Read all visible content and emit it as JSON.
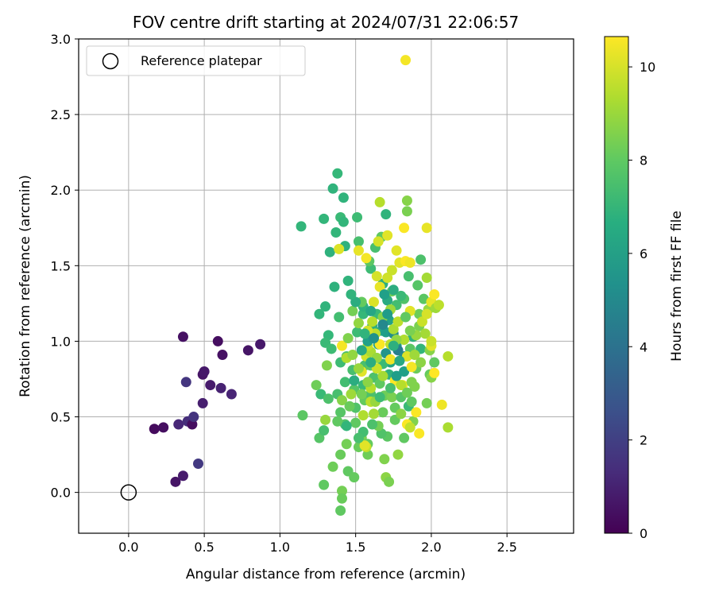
{
  "chart_data": {
    "type": "scatter",
    "title": "FOV centre drift starting at 2024/07/31 22:06:57",
    "xlabel": "Angular distance from reference (arcmin)",
    "ylabel": "Rotation from reference (arcmin)",
    "xlim": [
      -0.33,
      2.94
    ],
    "ylim": [
      -0.27,
      3.0
    ],
    "xticks": [
      0.0,
      0.5,
      1.0,
      1.5,
      2.0,
      2.5
    ],
    "xtick_labels": [
      "0.0",
      "0.5",
      "1.0",
      "1.5",
      "2.0",
      "2.5"
    ],
    "yticks": [
      0.0,
      0.5,
      1.0,
      1.5,
      2.0,
      2.5,
      3.0
    ],
    "ytick_labels": [
      "0.0",
      "0.5",
      "1.0",
      "1.5",
      "2.0",
      "2.5",
      "3.0"
    ],
    "grid": true,
    "legend": {
      "placement": "top-left",
      "entries": [
        "Reference platepar"
      ]
    },
    "reference_point": {
      "x": 0.0,
      "y": 0.0
    },
    "colorbar": {
      "label": "Hours from first FF file",
      "range": [
        0,
        10.65
      ],
      "ticks": [
        0,
        2,
        4,
        6,
        8,
        10
      ],
      "tick_labels": [
        "0",
        "2",
        "4",
        "6",
        "8",
        "10"
      ],
      "colormap": "viridis"
    },
    "points": [
      [
        0.17,
        0.42,
        0.3
      ],
      [
        0.23,
        0.43,
        0.4
      ],
      [
        0.31,
        0.07,
        0.6
      ],
      [
        0.36,
        0.11,
        0.8
      ],
      [
        0.33,
        0.45,
        1.2
      ],
      [
        0.39,
        0.47,
        1.4
      ],
      [
        0.42,
        0.45,
        0.4
      ],
      [
        0.43,
        0.5,
        1.6
      ],
      [
        0.46,
        0.19,
        1.8
      ],
      [
        0.38,
        0.73,
        1.7
      ],
      [
        0.36,
        1.03,
        0.5
      ],
      [
        0.49,
        0.78,
        0.6
      ],
      [
        0.5,
        0.8,
        0.7
      ],
      [
        0.49,
        0.59,
        0.9
      ],
      [
        0.54,
        0.71,
        0.8
      ],
      [
        0.61,
        0.69,
        1.0
      ],
      [
        0.68,
        0.65,
        1.1
      ],
      [
        0.59,
        1.0,
        0.4
      ],
      [
        0.62,
        0.91,
        0.5
      ],
      [
        0.79,
        0.94,
        0.6
      ],
      [
        0.87,
        0.98,
        0.7
      ],
      [
        1.14,
        1.76,
        7.0
      ],
      [
        1.29,
        1.81,
        7.0
      ],
      [
        1.35,
        2.01,
        6.9
      ],
      [
        1.38,
        2.11,
        7.1
      ],
      [
        1.42,
        1.95,
        6.9
      ],
      [
        1.4,
        1.82,
        7.2
      ],
      [
        1.33,
        1.59,
        6.8
      ],
      [
        1.42,
        1.79,
        7.0
      ],
      [
        1.43,
        1.63,
        6.8
      ],
      [
        1.37,
        1.72,
        7.0
      ],
      [
        1.51,
        1.82,
        7.3
      ],
      [
        1.52,
        1.66,
        7.5
      ],
      [
        1.36,
        1.36,
        6.8
      ],
      [
        1.45,
        1.4,
        6.9
      ],
      [
        1.3,
        1.23,
        6.9
      ],
      [
        1.26,
        1.18,
        7.0
      ],
      [
        1.32,
        1.04,
        7.1
      ],
      [
        1.3,
        0.99,
        7.2
      ],
      [
        1.34,
        0.95,
        7.3
      ],
      [
        1.39,
        1.16,
        7.4
      ],
      [
        1.4,
        0.86,
        7.3
      ],
      [
        1.44,
        0.9,
        7.6
      ],
      [
        1.43,
        0.73,
        7.4
      ],
      [
        1.48,
        0.81,
        7.5
      ],
      [
        1.27,
        0.65,
        7.2
      ],
      [
        1.32,
        0.62,
        7.6
      ],
      [
        1.38,
        0.65,
        7.5
      ],
      [
        1.4,
        0.53,
        7.8
      ],
      [
        1.43,
        0.45,
        7.7
      ],
      [
        1.26,
        0.36,
        7.8
      ],
      [
        1.29,
        0.41,
        7.5
      ],
      [
        1.15,
        0.51,
        7.9
      ],
      [
        1.31,
        0.84,
        8.6
      ],
      [
        1.24,
        0.71,
        8.3
      ],
      [
        1.3,
        0.48,
        9.0
      ],
      [
        1.29,
        0.05,
        8.0
      ],
      [
        1.35,
        0.17,
        8.3
      ],
      [
        1.4,
        0.25,
        8.2
      ],
      [
        1.45,
        0.14,
        8.0
      ],
      [
        1.49,
        0.1,
        8.1
      ],
      [
        1.41,
        0.01,
        8.4
      ],
      [
        1.41,
        -0.04,
        8.2
      ],
      [
        1.4,
        -0.12,
        8.0
      ],
      [
        1.44,
        0.32,
        8.4
      ],
      [
        1.52,
        0.3,
        8.2
      ],
      [
        1.54,
        0.36,
        8.5
      ],
      [
        1.58,
        0.32,
        8.1
      ],
      [
        1.55,
        0.4,
        7.4
      ],
      [
        1.5,
        0.56,
        7.7
      ],
      [
        1.49,
        0.68,
        7.8
      ],
      [
        1.56,
        0.61,
        8.1
      ],
      [
        1.6,
        0.65,
        7.6
      ],
      [
        1.55,
        0.71,
        7.2
      ],
      [
        1.56,
        0.84,
        7.5
      ],
      [
        1.6,
        0.84,
        7.9
      ],
      [
        1.51,
        1.06,
        7.3
      ],
      [
        1.55,
        1.18,
        7.1
      ],
      [
        1.55,
        1.23,
        6.8
      ],
      [
        1.61,
        1.1,
        6.7
      ],
      [
        1.64,
        1.18,
        7.2
      ],
      [
        1.67,
        1.07,
        6.5
      ],
      [
        1.65,
        0.98,
        6.2
      ],
      [
        1.7,
        1.06,
        5.9
      ],
      [
        1.72,
        1.14,
        6.1
      ],
      [
        1.7,
        0.92,
        5.5
      ],
      [
        1.73,
        0.86,
        6.3
      ],
      [
        1.77,
        0.97,
        5.6
      ],
      [
        1.75,
        1.05,
        5.2
      ],
      [
        1.78,
        0.94,
        4.6
      ],
      [
        1.82,
        0.9,
        5.0
      ],
      [
        1.82,
        0.8,
        6.0
      ],
      [
        1.72,
        0.78,
        6.8
      ],
      [
        1.68,
        0.85,
        7.2
      ],
      [
        1.62,
        0.76,
        7.6
      ],
      [
        1.66,
        0.72,
        8.0
      ],
      [
        1.69,
        0.64,
        8.3
      ],
      [
        1.74,
        0.63,
        8.5
      ],
      [
        1.76,
        0.56,
        8.1
      ],
      [
        1.8,
        0.63,
        7.8
      ],
      [
        1.85,
        0.57,
        7.2
      ],
      [
        1.87,
        0.6,
        8.0
      ],
      [
        1.89,
        0.7,
        8.6
      ],
      [
        1.9,
        0.82,
        8.2
      ],
      [
        1.86,
        0.95,
        7.9
      ],
      [
        1.93,
        0.95,
        7.0
      ],
      [
        1.88,
        1.03,
        6.8
      ],
      [
        1.92,
        1.1,
        8.5
      ],
      [
        1.82,
        1.28,
        7.7
      ],
      [
        1.77,
        1.24,
        7.4
      ],
      [
        1.8,
        1.3,
        7.2
      ],
      [
        1.71,
        1.27,
        6.5
      ],
      [
        1.68,
        1.38,
        6.7
      ],
      [
        1.6,
        1.48,
        7.3
      ],
      [
        1.59,
        1.53,
        7.9
      ],
      [
        1.63,
        1.62,
        7.5
      ],
      [
        1.67,
        1.69,
        8.0
      ],
      [
        1.7,
        1.84,
        6.9
      ],
      [
        1.84,
        1.93,
        8.7
      ],
      [
        1.84,
        1.86,
        8.5
      ],
      [
        1.85,
        1.43,
        7.5
      ],
      [
        1.91,
        1.37,
        7.8
      ],
      [
        1.93,
        1.54,
        7.6
      ],
      [
        1.95,
        1.28,
        7.9
      ],
      [
        1.92,
        1.18,
        8.3
      ],
      [
        1.98,
        1.21,
        9.0
      ],
      [
        1.96,
        1.05,
        9.2
      ],
      [
        1.99,
        0.94,
        8.7
      ],
      [
        2.02,
        0.86,
        8.0
      ],
      [
        1.99,
        0.78,
        8.1
      ],
      [
        2.0,
        0.76,
        8.7
      ],
      [
        1.97,
        0.59,
        8.4
      ],
      [
        1.82,
        0.36,
        8.0
      ],
      [
        1.88,
        0.47,
        8.6
      ],
      [
        1.71,
        0.37,
        7.9
      ],
      [
        1.67,
        0.39,
        7.7
      ],
      [
        1.68,
        0.53,
        8.2
      ],
      [
        1.69,
        0.22,
        8.6
      ],
      [
        1.7,
        0.1,
        8.8
      ],
      [
        1.72,
        0.07,
        8.5
      ],
      [
        1.78,
        0.25,
        8.9
      ],
      [
        1.58,
        0.25,
        8.3
      ],
      [
        1.57,
        0.3,
        9.7
      ],
      [
        1.56,
        0.31,
        10.2
      ],
      [
        1.62,
        0.52,
        9.2
      ],
      [
        1.6,
        0.6,
        9.6
      ],
      [
        1.55,
        0.51,
        9.4
      ],
      [
        1.6,
        0.69,
        9.5
      ],
      [
        1.54,
        0.8,
        10.2
      ],
      [
        1.57,
        0.9,
        9.9
      ],
      [
        1.6,
        0.93,
        9.3
      ],
      [
        1.58,
        0.97,
        9.7
      ],
      [
        1.61,
        1.13,
        9.5
      ],
      [
        1.63,
        1.05,
        9.6
      ],
      [
        1.58,
        1.07,
        10.0
      ],
      [
        1.62,
        1.26,
        10.1
      ],
      [
        1.66,
        1.36,
        10.3
      ],
      [
        1.64,
        1.43,
        10.0
      ],
      [
        1.71,
        1.42,
        9.9
      ],
      [
        1.74,
        1.47,
        9.8
      ],
      [
        1.79,
        1.52,
        10.2
      ],
      [
        1.83,
        1.53,
        10.6
      ],
      [
        1.86,
        1.52,
        10.4
      ],
      [
        1.77,
        1.6,
        10.2
      ],
      [
        1.82,
        1.75,
        10.6
      ],
      [
        1.71,
        1.7,
        10.2
      ],
      [
        1.66,
        1.92,
        9.5
      ],
      [
        1.65,
        1.66,
        10.0
      ],
      [
        1.52,
        1.6,
        10.3
      ],
      [
        1.57,
        1.55,
        10.5
      ],
      [
        1.39,
        1.61,
        10.1
      ],
      [
        1.41,
        0.97,
        10.5
      ],
      [
        1.44,
        0.89,
        9.4
      ],
      [
        1.66,
        0.98,
        10.6
      ],
      [
        1.73,
        0.88,
        10.4
      ],
      [
        1.76,
        0.74,
        10.6
      ],
      [
        1.81,
        0.71,
        10.4
      ],
      [
        1.84,
        0.9,
        10.1
      ],
      [
        1.87,
        0.83,
        10.5
      ],
      [
        1.9,
        0.53,
        10.6
      ],
      [
        1.84,
        0.45,
        10.6
      ],
      [
        1.86,
        0.43,
        9.7
      ],
      [
        1.92,
        0.39,
        10.6
      ],
      [
        1.8,
        0.71,
        9.5
      ],
      [
        1.82,
        1.01,
        9.4
      ],
      [
        1.86,
        1.2,
        10.2
      ],
      [
        1.9,
        1.04,
        9.0
      ],
      [
        1.94,
        1.13,
        9.8
      ],
      [
        1.97,
        1.18,
        10.0
      ],
      [
        2.0,
        1.26,
        10.3
      ],
      [
        2.02,
        1.31,
        10.6
      ],
      [
        2.03,
        1.22,
        9.1
      ],
      [
        2.05,
        1.24,
        9.6
      ],
      [
        2.0,
        0.97,
        10.2
      ],
      [
        2.02,
        0.79,
        10.7
      ],
      [
        2.07,
        0.58,
        10.4
      ],
      [
        2.11,
        0.43,
        9.3
      ],
      [
        2.11,
        0.9,
        9.5
      ],
      [
        2.0,
        1.0,
        9.8
      ],
      [
        1.97,
        1.42,
        9.2
      ],
      [
        1.97,
        1.75,
        10.3
      ],
      [
        1.83,
        2.86,
        10.5
      ],
      [
        1.86,
        1.07,
        8.5
      ],
      [
        1.74,
        1.33,
        8.3
      ],
      [
        1.68,
        1.16,
        8.7
      ],
      [
        1.75,
        1.08,
        9.3
      ],
      [
        1.64,
        0.89,
        9.0
      ],
      [
        1.68,
        0.77,
        9.2
      ],
      [
        1.63,
        0.6,
        9.0
      ],
      [
        1.58,
        0.73,
        8.8
      ],
      [
        1.54,
        0.65,
        8.4
      ],
      [
        1.48,
        0.91,
        8.9
      ],
      [
        1.45,
        1.02,
        8.6
      ],
      [
        1.48,
        1.2,
        8.4
      ],
      [
        1.54,
        1.26,
        8.1
      ],
      [
        1.52,
        1.12,
        8.9
      ],
      [
        1.73,
        1.21,
        9.1
      ],
      [
        1.78,
        1.13,
        9.6
      ],
      [
        1.77,
        1.01,
        8.9
      ],
      [
        1.73,
        0.98,
        9.6
      ],
      [
        1.64,
        0.82,
        9.8
      ],
      [
        1.52,
        0.82,
        9.0
      ],
      [
        1.47,
        0.65,
        9.1
      ],
      [
        1.41,
        0.61,
        8.7
      ],
      [
        1.38,
        0.47,
        8.0
      ],
      [
        1.46,
        0.57,
        8.2
      ],
      [
        1.5,
        0.46,
        8.0
      ],
      [
        1.65,
        0.44,
        8.4
      ],
      [
        1.76,
        0.48,
        8.1
      ],
      [
        1.8,
        0.52,
        8.8
      ],
      [
        1.84,
        0.66,
        8.3
      ],
      [
        1.87,
        0.73,
        8.6
      ],
      [
        1.89,
        0.91,
        9.1
      ],
      [
        1.93,
        0.86,
        8.8
      ],
      [
        1.83,
        1.16,
        8.0
      ],
      [
        1.73,
        0.69,
        7.5
      ],
      [
        1.66,
        0.63,
        7.3
      ],
      [
        1.61,
        0.45,
        7.6
      ],
      [
        1.52,
        0.36,
        7.5
      ],
      [
        1.44,
        0.44,
        7.0
      ],
      [
        1.49,
        0.74,
        6.6
      ],
      [
        1.54,
        0.94,
        6.4
      ],
      [
        1.58,
        1.0,
        6.0
      ],
      [
        1.62,
        1.02,
        5.4
      ],
      [
        1.6,
        1.2,
        6.3
      ],
      [
        1.5,
        1.26,
        6.6
      ],
      [
        1.47,
        1.31,
        6.9
      ],
      [
        1.69,
        1.31,
        6.0
      ],
      [
        1.75,
        1.34,
        6.6
      ],
      [
        1.71,
        1.18,
        5.8
      ],
      [
        1.68,
        1.11,
        5.0
      ],
      [
        1.75,
        0.97,
        6.7
      ],
      [
        1.79,
        0.87,
        6.4
      ],
      [
        1.77,
        0.77,
        5.9
      ],
      [
        1.6,
        0.86,
        6.6
      ],
      [
        1.56,
        1.05,
        6.9
      ]
    ]
  }
}
